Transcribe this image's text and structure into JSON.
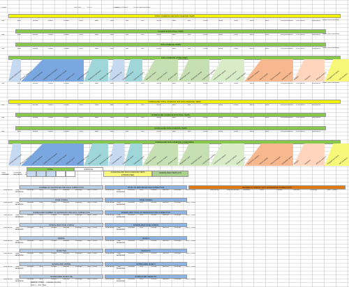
{
  "top_header": {
    "cells": [
      "CODE",
      "",
      "",
      "",
      "",
      "RATING",
      "R.T.L",
      "",
      "RCAR",
      "",
      "TOTAL WORDS",
      "TOTAL SENTENCES"
    ]
  },
  "sections": [
    {
      "label": "TOTAL COHESIVE AND NON COHESIVE ITEMS",
      "color": "#f2f200"
    },
    {
      "label": "COHESIVE NON-FINAL ITEMS",
      "color": "#86c84a"
    },
    {
      "label": "NON-COHESIVE ITEMS",
      "color": "#86c84a"
    },
    {
      "label": "NON-COHESIVE CATEGORIES",
      "color": "#86c84a"
    },
    {
      "label": "NORMALIZED TOTAL COHESIVE AND NON COHESIVE ITEMS",
      "color": "#f2f200"
    },
    {
      "label": "NORMALIZED COHESIVE NON-FINAL ITEMS",
      "color": "#86c84a"
    },
    {
      "label": "NORMALIZED NON-COHESIVE ITEMS",
      "color": "#86c84a"
    },
    {
      "label": "NORMALIZED NON-COHESIVE CATEGORIES",
      "color": "#86c84a"
    }
  ],
  "col_labels": [
    "Bar",
    "Bhst",
    "Bhstar",
    "Bhest",
    "Bhstar",
    "Fehlr",
    "Blasi",
    "Bfsn",
    "Bss",
    "Bfnl",
    "Mfunl",
    "Bacl",
    "Blsr",
    "Bhrwf",
    "Blsrq",
    "Blusr",
    "Blcnrl",
    "Bhsr",
    "compoundHour",
    "Frfnl Items",
    "Total Items"
  ],
  "trailing_label": "Totals (non cohesive)",
  "diag_headers": [
    "Lexical chains count",
    "Pronoun chain (r)",
    "Lexical repetition",
    "Conjunctions temporal",
    "Connectives causal",
    "Ellipsis count",
    "Substitution items",
    "Reference personal",
    "Reference demonstr.",
    "Comparative ref.",
    "Collocation items",
    "Synonym chains",
    "Hyponym chains",
    "Meronym chains",
    "Antonym pairs",
    "Repetition exact",
    "Repetition partial",
    "Connectives additive",
    "Connectives advers.",
    "Temporal markers",
    "Modal adverbs",
    "Discourse markers",
    "Deixis spatial",
    "Deixis temporal",
    "Evaluative items",
    "Hedges",
    "Boosters",
    "Attitude markers",
    "Engagement items",
    "Self mentions"
  ],
  "summary_bands": {
    "total_left": "TOTAL",
    "sub_left": "SUBTOTAL",
    "mid": "COHESIVE AND NON-COHESIVE ITEMS (UNDERLINED)",
    "right": "NORMALIZED ITEMS (C/T)",
    "row_labels": [
      "Non-cohesive",
      "Cohesive long items",
      "Cohesive long items",
      "Non-cohesive",
      "Non-cohesive long items"
    ]
  },
  "analysis_sections": [
    {
      "left": "NUMBER OF SENTENCES PER EACH SUBSECTION",
      "mid": "TOTAL OF SENTENCES PER SUBSECTION",
      "right": "DEGREE OF NORMAL TEXT KNOWLEDGE SUBSECTIONS"
    },
    {
      "left": "NONE CODING",
      "mid": "NONE CODING",
      "right": ""
    },
    {
      "left": "NORMALIZED NUMBER OF SENTENCES PER EACH SUBSECTION",
      "mid": "NORMALIZED TOTAL OF SENTENCES PER SUBSECTION",
      "right": ""
    },
    {
      "left": "NORMALIZED NONE CODING",
      "mid": "NORMALIZED NONE CODING",
      "right": ""
    },
    {
      "left": "VERBAL",
      "mid": "ADJECT",
      "right": ""
    },
    {
      "left": "ADJECTIVE",
      "mid": "SEMANTIC",
      "right": ""
    },
    {
      "left": "NORMALIZED VERBAL",
      "mid": "NORMALIZED ADJECT",
      "right": ""
    },
    {
      "left": "NORMALIZED ADJECTIVE",
      "mid": "NORMALIZED SEMANTIC",
      "right": ""
    }
  ],
  "analysis_cols": [
    "Total words",
    "Total sentences",
    "Abstract",
    "Intro",
    "Lit/Rev",
    "Method",
    "Findings",
    "Sum., Concl."
  ],
  "right_extra_cols": [
    "Total words",
    "Total sentences",
    "Abstract",
    "Intro",
    "Lit/Rev",
    "Method",
    "Findings",
    "Sum., Concl."
  ],
  "footer_note": "ERROR TYPES ... / Number of errors",
  "footer_note2": "(unit, n... Inst. Type",
  "colors": {
    "blue": "#7aa7df",
    "blue_light": "#c5d9f1",
    "teal": "#9fd6d9",
    "green_light": "#c6e0b4",
    "yellow": "#f7f77a",
    "orange": "#f8b88f",
    "orange_band": "#e07a10",
    "mid_band": "#8db4e2"
  }
}
